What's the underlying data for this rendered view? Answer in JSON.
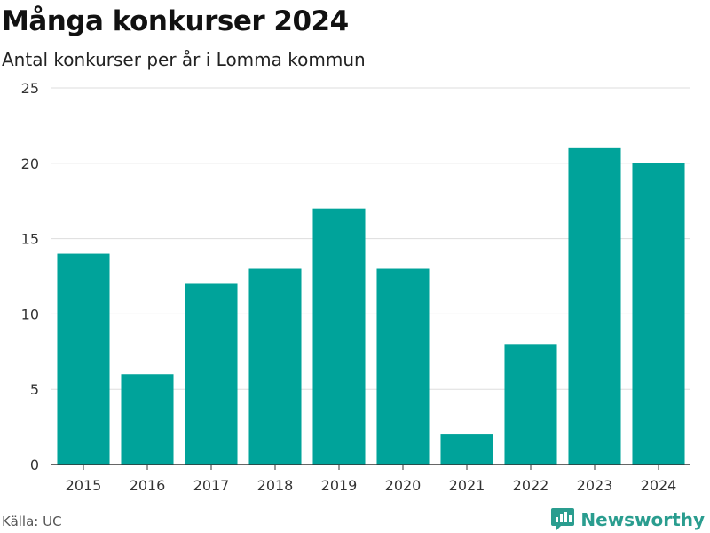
{
  "title": "Många konkurser 2024",
  "subtitle": "Antal konkurser per år i Lomma kommun",
  "source": "Källa: UC",
  "brand": "Newsworthy",
  "colors": {
    "bar": "#00A39A",
    "grid": "#dddddd",
    "axis": "#333333",
    "brand": "#2a9d8f"
  },
  "chart_data": {
    "type": "bar",
    "categories": [
      "2015",
      "2016",
      "2017",
      "2018",
      "2019",
      "2020",
      "2021",
      "2022",
      "2023",
      "2024"
    ],
    "values": [
      14,
      6,
      12,
      13,
      17,
      13,
      2,
      8,
      21,
      20
    ],
    "ylim": [
      0,
      25
    ],
    "yticks": [
      0,
      5,
      10,
      15,
      20,
      25
    ],
    "grid": true
  }
}
